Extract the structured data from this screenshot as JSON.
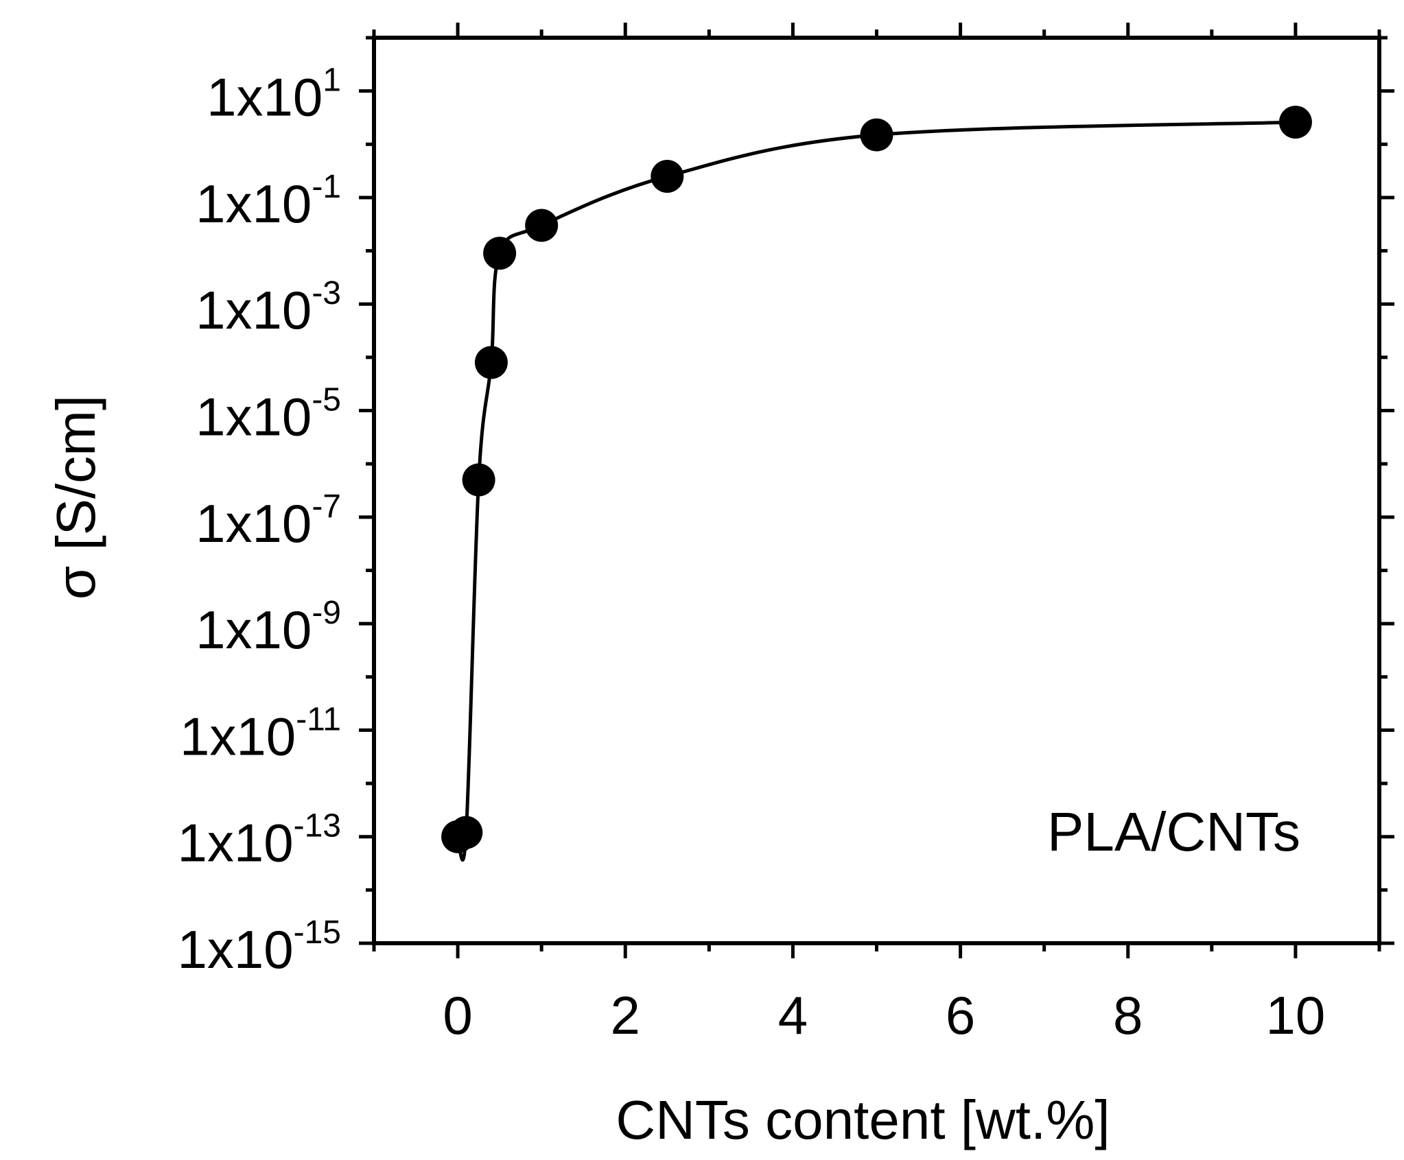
{
  "chart_data": {
    "type": "line",
    "title": "",
    "xlabel": "CNTs content [wt.%]",
    "ylabel": "σ [S/cm]",
    "annotation": "PLA/CNTs",
    "xlim": [
      -1,
      11
    ],
    "ylim_log10": [
      -15,
      2
    ],
    "y_scale": "log",
    "x_ticks": [
      0,
      2,
      4,
      6,
      8,
      10
    ],
    "x_tick_labels": [
      "0",
      "2",
      "4",
      "6",
      "8",
      "10"
    ],
    "y_ticks": [
      {
        "base": "1x10",
        "exp": "1",
        "value": 10
      },
      {
        "base": "1x10",
        "exp": "-1",
        "value": 0.1
      },
      {
        "base": "1x10",
        "exp": "-3",
        "value": 0.001
      },
      {
        "base": "1x10",
        "exp": "-5",
        "value": 1e-05
      },
      {
        "base": "1x10",
        "exp": "-7",
        "value": 1e-07
      },
      {
        "base": "1x10",
        "exp": "-9",
        "value": 1e-09
      },
      {
        "base": "1x10",
        "exp": "-11",
        "value": 1e-11
      },
      {
        "base": "1x10",
        "exp": "-13",
        "value": 1e-13
      },
      {
        "base": "1x10",
        "exp": "-15",
        "value": 1e-15
      }
    ],
    "grid": false,
    "series": [
      {
        "x": [
          0,
          0.1,
          0.25,
          0.4,
          0.5,
          1.0,
          2.5,
          5.0,
          10.0
        ],
        "y": [
          1e-13,
          1.2e-13,
          5e-07,
          8e-05,
          0.009,
          0.03,
          0.25,
          1.5,
          2.6
        ]
      }
    ],
    "colors": {
      "marker": "#000000",
      "line": "#000000"
    }
  }
}
